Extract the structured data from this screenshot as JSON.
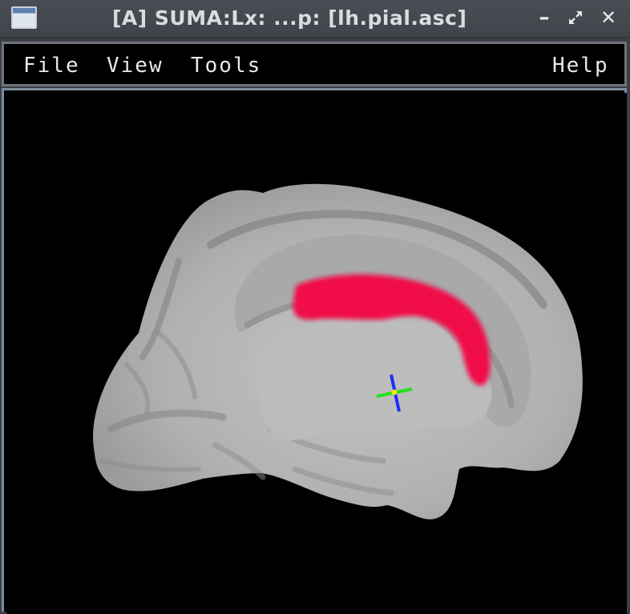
{
  "window": {
    "title": "[A] SUMA:Lx: ...p: [lh.pial.asc]"
  },
  "menu": {
    "file": "File",
    "view": "View",
    "tools": "Tools",
    "help": "Help"
  },
  "viewer": {
    "background_color": "#000000",
    "surface_color": "#b5b5b5",
    "roi_color": "#f0104a",
    "crosshair_colors": [
      "#1f2bff",
      "#22e01f",
      "#f2e600"
    ]
  }
}
